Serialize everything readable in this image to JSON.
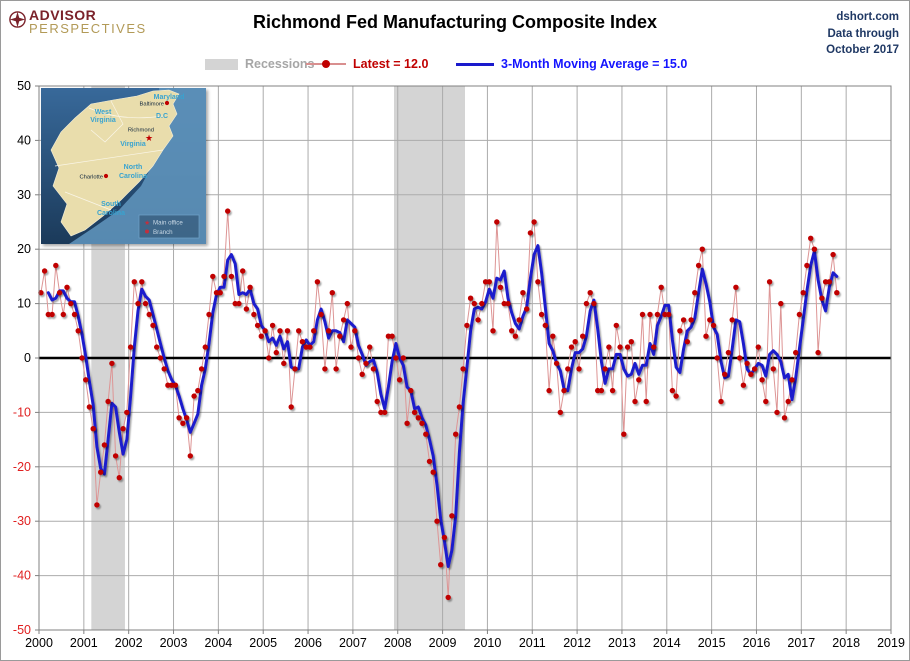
{
  "header": {
    "logo": {
      "line1": "ADVISOR",
      "line2": "PERSPECTIVES"
    },
    "title": "Richmond Fed Manufacturing Composite Index",
    "source": {
      "line1": "dshort.com",
      "line2": "Data through",
      "line3": "October 2017"
    }
  },
  "legend": {
    "recessions_label": "Recessions",
    "latest_label": "Latest = 12.0",
    "ma_label": "3-Month Moving Average = 15.0"
  },
  "colors": {
    "background": "#FFFFFF",
    "plot_border": "#808080",
    "gridline": "#ababab",
    "zero_line": "#000000",
    "recession_band": "#d4d4d4",
    "dot": "#c00000",
    "thin_line": "#dd9595",
    "ma_line": "#1f1fcc",
    "neg_tick_label": "#e02020",
    "pos_tick_label": "#000000",
    "source_text": "#1f3864",
    "logo_maroon": "#7b222a",
    "logo_gold": "#b29a57"
  },
  "map_inset": {
    "labels": {
      "wv1": "West",
      "wv2": "Virginia",
      "md": "Maryland",
      "dc": "D.C",
      "va": "Virginia",
      "nc1": "North",
      "nc2": "Carolina",
      "sc1": "South",
      "sc2": "Carolina",
      "baltimore": "Baltimore",
      "richmond": "Richmond",
      "charlotte": "Charlotte",
      "main_office": "Main office",
      "branch": "Branch"
    }
  },
  "chart_data": {
    "type": "line",
    "title": "Richmond Fed Manufacturing Composite Index",
    "frequency": "monthly",
    "x_start": "2000-01",
    "x_end": "2017-10",
    "x_tick_labels": [
      "2000",
      "2001",
      "2002",
      "2003",
      "2004",
      "2005",
      "2006",
      "2007",
      "2008",
      "2009",
      "2010",
      "2011",
      "2012",
      "2013",
      "2014",
      "2015",
      "2016",
      "2017",
      "2018",
      "2019"
    ],
    "y_tick_labels": [
      "50",
      "40",
      "30",
      "20",
      "10",
      "0",
      "-10",
      "-20",
      "-30",
      "-40",
      "-50"
    ],
    "ylim": [
      -50,
      50
    ],
    "grid": true,
    "legend_position": "top",
    "latest_value": 12.0,
    "ma_value": 15.0,
    "ma_window": 3,
    "recessions": [
      {
        "start": "2001-03",
        "end": "2001-11"
      },
      {
        "start": "2007-12",
        "end": "2009-06"
      }
    ],
    "series": [
      {
        "name": "Latest = 12.0",
        "style": "dots-with-thin-line",
        "values": [
          12,
          16,
          8,
          8,
          17,
          12,
          8,
          13,
          10,
          8,
          5,
          0,
          -4,
          -9,
          -13,
          -27,
          -21,
          -16,
          -8,
          -1,
          -18,
          -22,
          -13,
          -10,
          2,
          14,
          10,
          14,
          10,
          8,
          6,
          2,
          0,
          -2,
          -5,
          -5,
          -5,
          -11,
          -12,
          -11,
          -18,
          -7,
          -6,
          -2,
          2,
          8,
          15,
          12,
          12,
          15,
          27,
          15,
          10,
          10,
          16,
          9,
          13,
          8,
          6,
          4,
          5,
          0,
          6,
          1,
          5,
          -1,
          5,
          -9,
          -2,
          5,
          3,
          2,
          2,
          5,
          14,
          8,
          -2,
          5,
          12,
          -2,
          4,
          7,
          10,
          2,
          5,
          0,
          -3,
          -1,
          2,
          -2,
          -8,
          -10,
          -10,
          4,
          4,
          0,
          -4,
          0,
          -12,
          -6,
          -10,
          -11,
          -12,
          -14,
          -19,
          -21,
          -30,
          -38,
          -33,
          -44,
          -29,
          -14,
          -9,
          -2,
          6,
          11,
          10,
          7,
          10,
          14,
          14,
          5,
          25,
          13,
          10,
          10,
          5,
          4,
          7,
          12,
          9,
          23,
          25,
          14,
          8,
          6,
          -6,
          4,
          -1,
          -10,
          -6,
          -2,
          2,
          3,
          -2,
          4,
          10,
          12,
          10,
          -6,
          -6,
          -2,
          2,
          -6,
          6,
          2,
          -14,
          2,
          3,
          -8,
          -4,
          8,
          -8,
          8,
          2,
          8,
          13,
          8,
          8,
          -6,
          -7,
          5,
          7,
          3,
          7,
          12,
          17,
          20,
          4,
          7,
          6,
          0,
          -8,
          -3,
          1,
          7,
          13,
          0,
          -5,
          -1,
          -3,
          -2,
          2,
          -4,
          -8,
          14,
          -2,
          -10,
          10,
          -11,
          -8,
          -4,
          1,
          8,
          12,
          17,
          22,
          20,
          1,
          11,
          14,
          14,
          19,
          12
        ]
      },
      {
        "name": "3-Month Moving Average = 15.0",
        "style": "thick-line",
        "derived": "3-month moving average of first series",
        "last_value": 15.0
      }
    ]
  }
}
